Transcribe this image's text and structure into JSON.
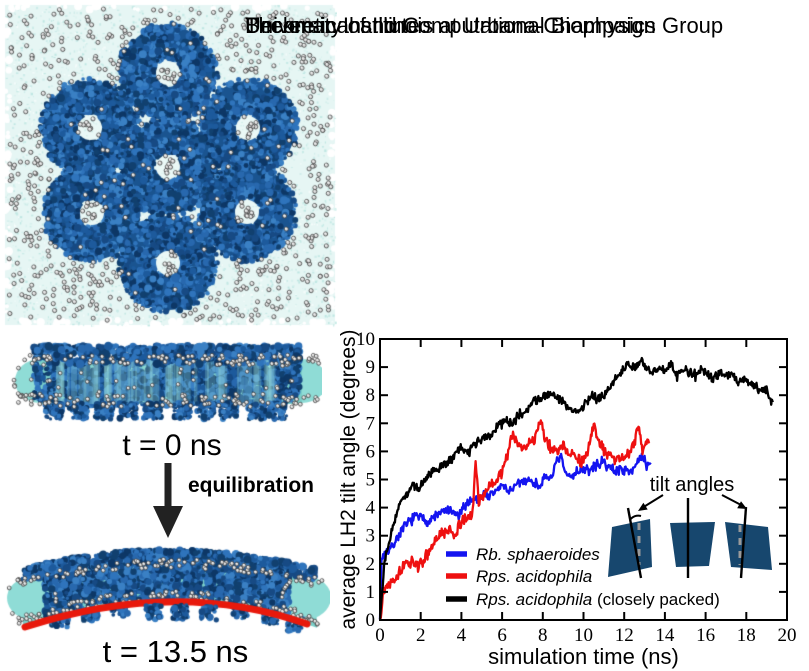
{
  "header": {
    "line1": "Theoretical and Computational Biophysics Group",
    "line2": "Beckman Institute",
    "line3": "University of Illinois at Urbana-Champaign"
  },
  "panels": {
    "top_view_alt": "top view of seven LH2 ring complexes embedded in a lipid membrane patch",
    "flat_view_label": "t = 0 ns",
    "process_label": "equilibration",
    "curved_view_label": "t = 13.5 ns"
  },
  "colors": {
    "series_blue": "#1414f0",
    "series_red": "#ee1010",
    "series_black": "#000000",
    "membrane_highlight_red": "#e8190c",
    "protein_blue": "#1d5a9c",
    "lipid_teal": "#8fdcd6",
    "inset_navy": "#17476e"
  },
  "chart_data": {
    "type": "line",
    "title": "",
    "xlabel": "simulation time (ns)",
    "ylabel": "average LH2 tilt angle (degrees)",
    "xlim": [
      0,
      20
    ],
    "ylim": [
      0,
      10
    ],
    "xticks": [
      0,
      2,
      4,
      6,
      8,
      10,
      12,
      14,
      16,
      18,
      20
    ],
    "yticks": [
      0,
      1,
      2,
      3,
      4,
      5,
      6,
      7,
      8,
      9,
      10
    ],
    "grid": false,
    "legend_position": "inside lower-left",
    "annotation": "tilt angles",
    "legend": [
      {
        "italic": "Rb. sphaeroides",
        "rest": ""
      },
      {
        "italic": "Rps. acidophila",
        "rest": ""
      },
      {
        "italic": "Rps. acidophila",
        "rest": " (closely packed)"
      }
    ],
    "series": [
      {
        "name": "Rb. sphaeroides",
        "color": "#1414f0",
        "noise": 0.22,
        "points": [
          [
            0,
            0.1
          ],
          [
            0.08,
            2.2
          ],
          [
            0.3,
            2.45
          ],
          [
            0.6,
            2.6
          ],
          [
            0.9,
            3.0
          ],
          [
            1.2,
            3.3
          ],
          [
            1.5,
            3.55
          ],
          [
            1.8,
            3.7
          ],
          [
            2.1,
            3.6
          ],
          [
            2.4,
            3.5
          ],
          [
            2.7,
            3.7
          ],
          [
            3.0,
            3.8
          ],
          [
            3.3,
            3.9
          ],
          [
            3.6,
            3.8
          ],
          [
            3.9,
            3.7
          ],
          [
            4.2,
            4.1
          ],
          [
            4.5,
            4.3
          ],
          [
            4.8,
            4.3
          ],
          [
            5.1,
            4.5
          ],
          [
            5.4,
            4.4
          ],
          [
            5.7,
            4.6
          ],
          [
            6.0,
            4.8
          ],
          [
            6.3,
            4.6
          ],
          [
            6.6,
            4.7
          ],
          [
            6.9,
            4.9
          ],
          [
            7.2,
            5.0
          ],
          [
            7.5,
            4.9
          ],
          [
            7.8,
            4.8
          ],
          [
            8.1,
            5.0
          ],
          [
            8.4,
            5.1
          ],
          [
            8.7,
            5.6
          ],
          [
            8.9,
            5.8
          ],
          [
            9.1,
            5.2
          ],
          [
            9.4,
            5.1
          ],
          [
            9.7,
            5.3
          ],
          [
            10.0,
            5.4
          ],
          [
            10.3,
            5.3
          ],
          [
            10.6,
            5.5
          ],
          [
            10.9,
            5.6
          ],
          [
            11.2,
            5.5
          ],
          [
            11.5,
            5.3
          ],
          [
            11.8,
            5.4
          ],
          [
            12.1,
            5.3
          ],
          [
            12.4,
            5.4
          ],
          [
            12.7,
            5.6
          ],
          [
            12.9,
            5.8
          ],
          [
            13.1,
            5.5
          ],
          [
            13.3,
            5.6
          ]
        ]
      },
      {
        "name": "Rps. acidophila",
        "color": "#ee1010",
        "noise": 0.24,
        "points": [
          [
            0,
            0.05
          ],
          [
            0.15,
            1.0
          ],
          [
            0.35,
            1.25
          ],
          [
            0.6,
            1.45
          ],
          [
            0.85,
            1.6
          ],
          [
            1.1,
            1.85
          ],
          [
            1.35,
            2.0
          ],
          [
            1.6,
            2.1
          ],
          [
            1.9,
            1.9
          ],
          [
            2.2,
            2.2
          ],
          [
            2.5,
            2.5
          ],
          [
            2.8,
            2.9
          ],
          [
            3.1,
            3.1
          ],
          [
            3.4,
            3.2
          ],
          [
            3.7,
            3.05
          ],
          [
            4.0,
            3.5
          ],
          [
            4.3,
            3.6
          ],
          [
            4.55,
            3.8
          ],
          [
            4.7,
            5.7
          ],
          [
            4.85,
            4.2
          ],
          [
            5.1,
            4.5
          ],
          [
            5.4,
            4.75
          ],
          [
            5.7,
            4.95
          ],
          [
            6.0,
            5.3
          ],
          [
            6.3,
            6.0
          ],
          [
            6.5,
            6.6
          ],
          [
            6.7,
            6.3
          ],
          [
            7.0,
            6.1
          ],
          [
            7.3,
            6.3
          ],
          [
            7.6,
            6.4
          ],
          [
            7.9,
            7.2
          ],
          [
            8.1,
            6.5
          ],
          [
            8.4,
            6.1
          ],
          [
            8.7,
            6.0
          ],
          [
            9.0,
            6.2
          ],
          [
            9.3,
            5.9
          ],
          [
            9.6,
            5.9
          ],
          [
            9.9,
            5.6
          ],
          [
            10.2,
            5.9
          ],
          [
            10.5,
            7.0
          ],
          [
            10.7,
            6.4
          ],
          [
            11.0,
            6.0
          ],
          [
            11.3,
            5.8
          ],
          [
            11.6,
            5.7
          ],
          [
            11.9,
            5.8
          ],
          [
            12.2,
            5.9
          ],
          [
            12.5,
            6.3
          ],
          [
            12.7,
            6.9
          ],
          [
            12.9,
            6.0
          ],
          [
            13.1,
            6.4
          ],
          [
            13.25,
            6.3
          ]
        ]
      },
      {
        "name": "Rps. acidophila (closely packed)",
        "color": "#000000",
        "noise": 0.2,
        "points": [
          [
            0,
            0.15
          ],
          [
            0.2,
            1.9
          ],
          [
            0.4,
            2.7
          ],
          [
            0.6,
            3.2
          ],
          [
            0.8,
            3.8
          ],
          [
            1.0,
            4.2
          ],
          [
            1.3,
            4.45
          ],
          [
            1.6,
            4.8
          ],
          [
            1.9,
            4.65
          ],
          [
            2.2,
            5.0
          ],
          [
            2.5,
            5.25
          ],
          [
            2.8,
            5.3
          ],
          [
            3.1,
            5.5
          ],
          [
            3.4,
            5.65
          ],
          [
            3.7,
            5.9
          ],
          [
            4.0,
            6.2
          ],
          [
            4.3,
            5.95
          ],
          [
            4.6,
            6.2
          ],
          [
            5.0,
            6.45
          ],
          [
            5.4,
            6.6
          ],
          [
            5.8,
            6.9
          ],
          [
            6.2,
            7.1
          ],
          [
            6.5,
            6.9
          ],
          [
            6.8,
            7.3
          ],
          [
            7.2,
            7.5
          ],
          [
            7.6,
            7.8
          ],
          [
            8.0,
            7.9
          ],
          [
            8.4,
            8.1
          ],
          [
            8.7,
            7.9
          ],
          [
            9.0,
            7.8
          ],
          [
            9.3,
            7.5
          ],
          [
            9.6,
            7.45
          ],
          [
            10.0,
            7.6
          ],
          [
            10.4,
            8.0
          ],
          [
            10.7,
            7.85
          ],
          [
            11.0,
            7.95
          ],
          [
            11.3,
            8.3
          ],
          [
            11.6,
            8.6
          ],
          [
            11.9,
            8.85
          ],
          [
            12.2,
            9.1
          ],
          [
            12.5,
            8.95
          ],
          [
            12.8,
            9.25
          ],
          [
            13.1,
            8.9
          ],
          [
            13.4,
            8.8
          ],
          [
            13.7,
            9.0
          ],
          [
            14.0,
            8.85
          ],
          [
            14.3,
            9.05
          ],
          [
            14.6,
            8.7
          ],
          [
            14.9,
            8.9
          ],
          [
            15.2,
            8.85
          ],
          [
            15.5,
            8.7
          ],
          [
            15.8,
            8.95
          ],
          [
            16.1,
            8.7
          ],
          [
            16.4,
            8.6
          ],
          [
            16.7,
            8.8
          ],
          [
            17.0,
            8.65
          ],
          [
            17.3,
            8.7
          ],
          [
            17.6,
            8.45
          ],
          [
            17.9,
            8.55
          ],
          [
            18.2,
            8.4
          ],
          [
            18.5,
            8.3
          ],
          [
            18.8,
            8.1
          ],
          [
            19.0,
            8.2
          ],
          [
            19.15,
            7.95
          ],
          [
            19.3,
            7.75
          ]
        ]
      }
    ]
  }
}
